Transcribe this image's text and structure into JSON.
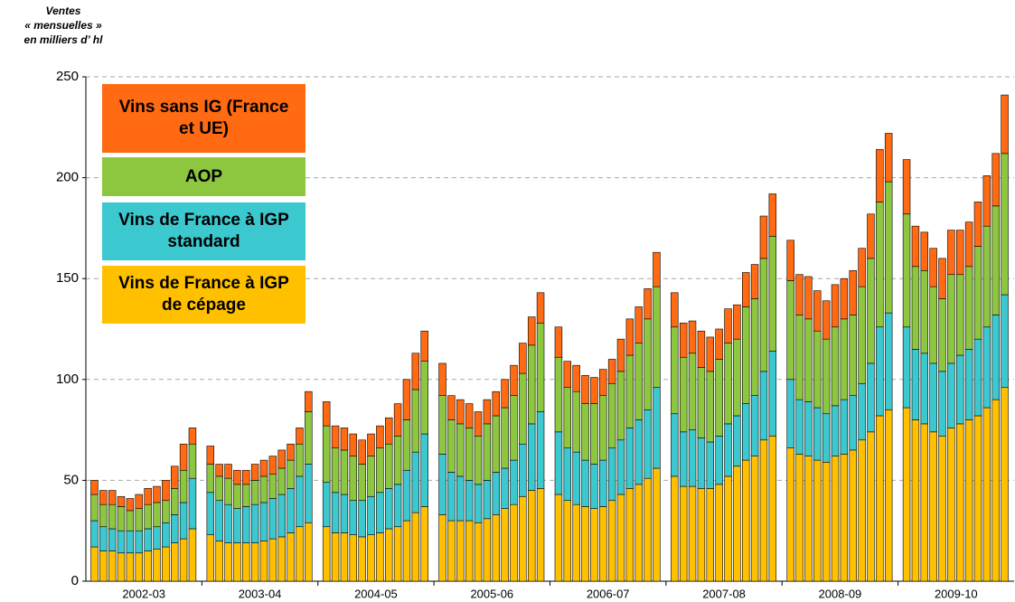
{
  "chart_data": {
    "type": "grouped_stacked_bar",
    "y_label": [
      "Ventes",
      "« mensuelles »",
      "en milliers d’ hl"
    ],
    "groups": [
      "2002-03",
      "2003-04",
      "2004-05",
      "2005-06",
      "2006-07",
      "2007-08",
      "2008-09",
      "2009-10"
    ],
    "ylim": [
      0,
      250
    ],
    "yticks": [
      0,
      50,
      100,
      150,
      200,
      250
    ],
    "grid": true,
    "legend": "top-left",
    "series": [
      {
        "name": "Vins de France à IGP de cépage",
        "color": "#FFC000",
        "values": [
          [
            17,
            15,
            15,
            14,
            14,
            14,
            15,
            16,
            17,
            19,
            21,
            26
          ],
          [
            23,
            20,
            19,
            19,
            19,
            19,
            20,
            21,
            22,
            24,
            27,
            29
          ],
          [
            27,
            24,
            24,
            23,
            22,
            23,
            24,
            26,
            27,
            30,
            34,
            37
          ],
          [
            33,
            30,
            30,
            30,
            29,
            31,
            33,
            36,
            38,
            42,
            45,
            46
          ],
          [
            43,
            40,
            38,
            37,
            36,
            37,
            40,
            43,
            46,
            48,
            51,
            56
          ],
          [
            52,
            47,
            47,
            46,
            46,
            48,
            52,
            57,
            60,
            62,
            70,
            72
          ],
          [
            66,
            63,
            62,
            60,
            59,
            62,
            63,
            65,
            70,
            74,
            82,
            85
          ],
          [
            86,
            80,
            78,
            74,
            72,
            76,
            78,
            80,
            82,
            86,
            90,
            96
          ]
        ]
      },
      {
        "name": "Vins de France à IGP standard",
        "color": "#3CC8CF",
        "values": [
          [
            13,
            12,
            11,
            11,
            11,
            11,
            11,
            11,
            12,
            14,
            18,
            25
          ],
          [
            21,
            20,
            19,
            17,
            18,
            19,
            19,
            20,
            21,
            22,
            25,
            29
          ],
          [
            22,
            20,
            19,
            17,
            18,
            19,
            20,
            20,
            21,
            25,
            30,
            36
          ],
          [
            30,
            24,
            22,
            20,
            19,
            19,
            21,
            20,
            22,
            26,
            33,
            38
          ],
          [
            31,
            26,
            26,
            23,
            22,
            23,
            26,
            27,
            30,
            32,
            34,
            40
          ],
          [
            31,
            27,
            28,
            25,
            23,
            24,
            26,
            25,
            28,
            30,
            34,
            42
          ],
          [
            34,
            27,
            27,
            26,
            24,
            25,
            27,
            27,
            28,
            34,
            44,
            48
          ],
          [
            40,
            35,
            35,
            34,
            32,
            32,
            34,
            35,
            38,
            40,
            42,
            46
          ]
        ]
      },
      {
        "name": "AOP",
        "color": "#8DC63F",
        "values": [
          [
            13,
            11,
            12,
            12,
            10,
            11,
            12,
            12,
            11,
            13,
            16,
            17
          ],
          [
            14,
            12,
            13,
            12,
            11,
            12,
            13,
            12,
            13,
            14,
            16,
            26
          ],
          [
            28,
            22,
            22,
            22,
            18,
            20,
            22,
            22,
            24,
            25,
            31,
            36
          ],
          [
            29,
            26,
            26,
            26,
            24,
            28,
            28,
            30,
            32,
            35,
            39,
            44
          ],
          [
            37,
            30,
            30,
            28,
            30,
            32,
            32,
            34,
            36,
            38,
            45,
            50
          ],
          [
            43,
            37,
            38,
            35,
            35,
            38,
            40,
            38,
            48,
            48,
            56,
            57
          ],
          [
            49,
            42,
            41,
            38,
            37,
            39,
            40,
            40,
            48,
            52,
            62,
            65
          ],
          [
            56,
            41,
            41,
            38,
            36,
            44,
            40,
            41,
            46,
            50,
            54,
            70
          ]
        ]
      },
      {
        "name": "Vins sans IG (France et UE)",
        "color": "#FF6A13",
        "values": [
          [
            7,
            7,
            7,
            5,
            6,
            7,
            8,
            8,
            10,
            11,
            13,
            8
          ],
          [
            9,
            6,
            7,
            7,
            7,
            8,
            8,
            9,
            9,
            8,
            8,
            10
          ],
          [
            12,
            11,
            11,
            11,
            12,
            11,
            11,
            13,
            16,
            20,
            18,
            15
          ],
          [
            16,
            12,
            12,
            12,
            12,
            12,
            12,
            14,
            15,
            15,
            14,
            15
          ],
          [
            15,
            13,
            13,
            14,
            13,
            13,
            12,
            16,
            18,
            18,
            15,
            17
          ],
          [
            17,
            17,
            16,
            18,
            17,
            15,
            17,
            17,
            17,
            17,
            21,
            21
          ],
          [
            20,
            20,
            21,
            20,
            19,
            21,
            20,
            22,
            19,
            22,
            26,
            24
          ],
          [
            27,
            20,
            19,
            19,
            20,
            22,
            22,
            22,
            22,
            25,
            26,
            29
          ]
        ]
      }
    ]
  }
}
